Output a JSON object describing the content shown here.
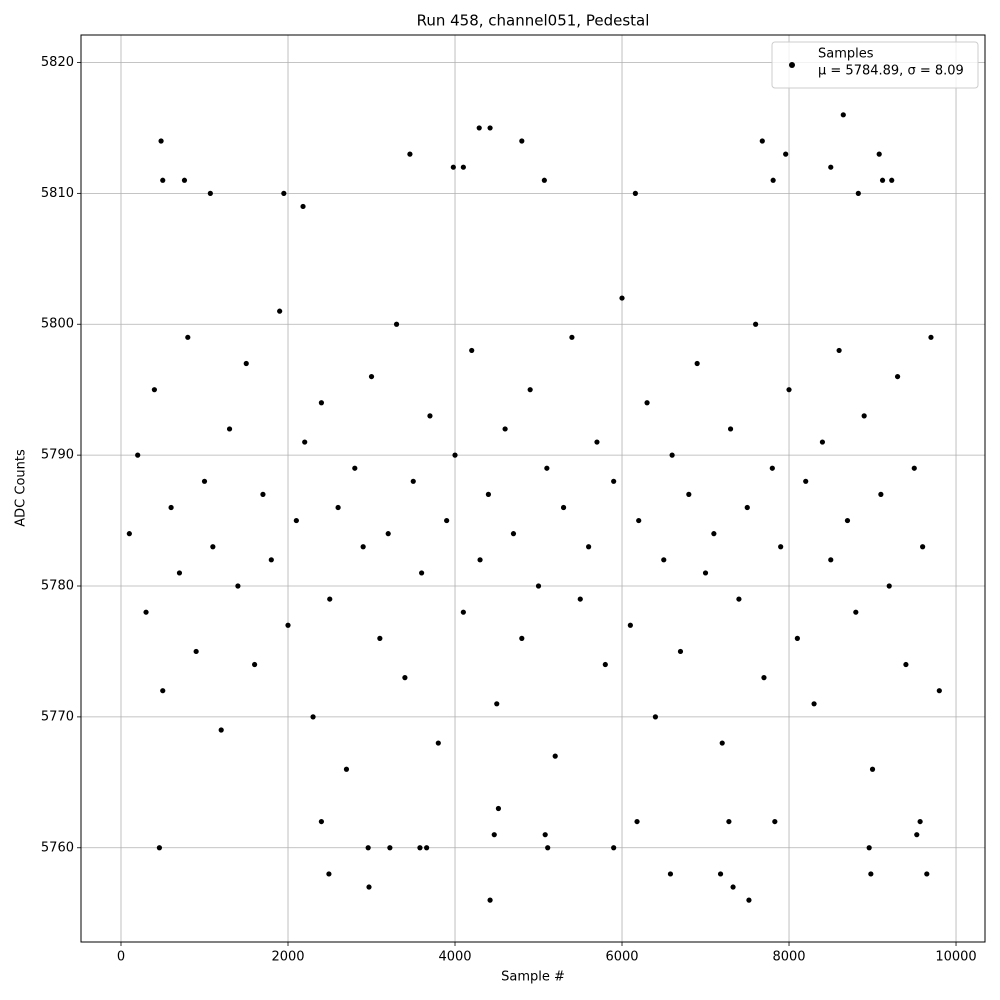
{
  "chart_data": {
    "type": "scatter",
    "title": "Run 458, channel051, Pedestal",
    "x_label": "Sample #",
    "y_label": "ADC Counts",
    "xlim": [
      -479,
      10347
    ],
    "ylim": [
      5752.8,
      5822.1
    ],
    "xticks": [
      0,
      2000,
      4000,
      6000,
      8000,
      10000
    ],
    "yticks": [
      5760,
      5770,
      5780,
      5790,
      5800,
      5810,
      5820
    ],
    "grid": true,
    "legend_position": "upper right",
    "legend_note": "μ = 5784.89, σ = 8.09",
    "series": [
      {
        "name": "Samples",
        "color": "#000000",
        "x": [
          100,
          200,
          300,
          400,
          500,
          600,
          700,
          800,
          900,
          1000,
          1100,
          1200,
          1300,
          1400,
          1500,
          1600,
          1700,
          1800,
          1900,
          2000,
          2100,
          2200,
          2300,
          2400,
          2500,
          2600,
          2700,
          2800,
          2900,
          3000,
          3100,
          3200,
          3300,
          3400,
          3500,
          3600,
          3700,
          3800,
          3900,
          4000,
          4100,
          4200,
          4300,
          4400,
          4500,
          4600,
          4700,
          4800,
          4900,
          5000,
          5100,
          5200,
          5300,
          5400,
          5500,
          5600,
          5700,
          5800,
          5900,
          6000,
          6100,
          6200,
          6300,
          6400,
          6500,
          6600,
          6700,
          6800,
          6900,
          7000,
          7100,
          7200,
          7300,
          7400,
          7500,
          7600,
          7700,
          7800,
          7900,
          8000,
          8100,
          8200,
          8300,
          8400,
          8500,
          8600,
          8700,
          8800,
          8900,
          9000,
          9100,
          9200,
          9300,
          9400,
          9500,
          9600,
          9700,
          9800,
          460,
          480,
          500,
          760,
          1070,
          1950,
          2180,
          2400,
          2490,
          2960,
          2970,
          3220,
          3460,
          3580,
          3660,
          3980,
          4100,
          4290,
          4420,
          4420,
          4470,
          4520,
          4800,
          5070,
          5080,
          5110,
          5900,
          6160,
          6180,
          6580,
          7180,
          7280,
          7330,
          7520,
          7680,
          7810,
          7830,
          7960,
          8500,
          8650,
          8830,
          8960,
          8980,
          9080,
          9120,
          9230,
          9530,
          9570,
          9650
        ],
        "y": [
          5784,
          5790,
          5778,
          5795,
          5772,
          5786,
          5781,
          5799,
          5775,
          5788,
          5783,
          5769,
          5792,
          5780,
          5797,
          5774,
          5787,
          5782,
          5801,
          5777,
          5785,
          5791,
          5770,
          5794,
          5779,
          5786,
          5766,
          5789,
          5783,
          5796,
          5776,
          5784,
          5800,
          5773,
          5788,
          5781,
          5793,
          5768,
          5785,
          5790,
          5778,
          5798,
          5782,
          5787,
          5771,
          5792,
          5784,
          5776,
          5795,
          5780,
          5789,
          5767,
          5786,
          5799,
          5779,
          5783,
          5791,
          5774,
          5788,
          5802,
          5777,
          5785,
          5794,
          5770,
          5782,
          5790,
          5775,
          5787,
          5797,
          5781,
          5784,
          5768,
          5792,
          5779,
          5786,
          5800,
          5773,
          5789,
          5783,
          5795,
          5776,
          5788,
          5771,
          5791,
          5782,
          5798,
          5785,
          5778,
          5793,
          5766,
          5787,
          5780,
          5796,
          5774,
          5789,
          5783,
          5799,
          5772,
          5760,
          5814,
          5811,
          5811,
          5810,
          5810,
          5809,
          5762,
          5758,
          5760,
          5757,
          5760,
          5813,
          5760,
          5760,
          5812,
          5812,
          5815,
          5815,
          5756,
          5761,
          5763,
          5814,
          5811,
          5761,
          5760,
          5760,
          5810,
          5762,
          5758,
          5758,
          5762,
          5757,
          5756,
          5814,
          5811,
          5762,
          5813,
          5812,
          5816,
          5810,
          5760,
          5758,
          5813,
          5811,
          5811,
          5761,
          5762,
          5758
        ]
      }
    ]
  }
}
